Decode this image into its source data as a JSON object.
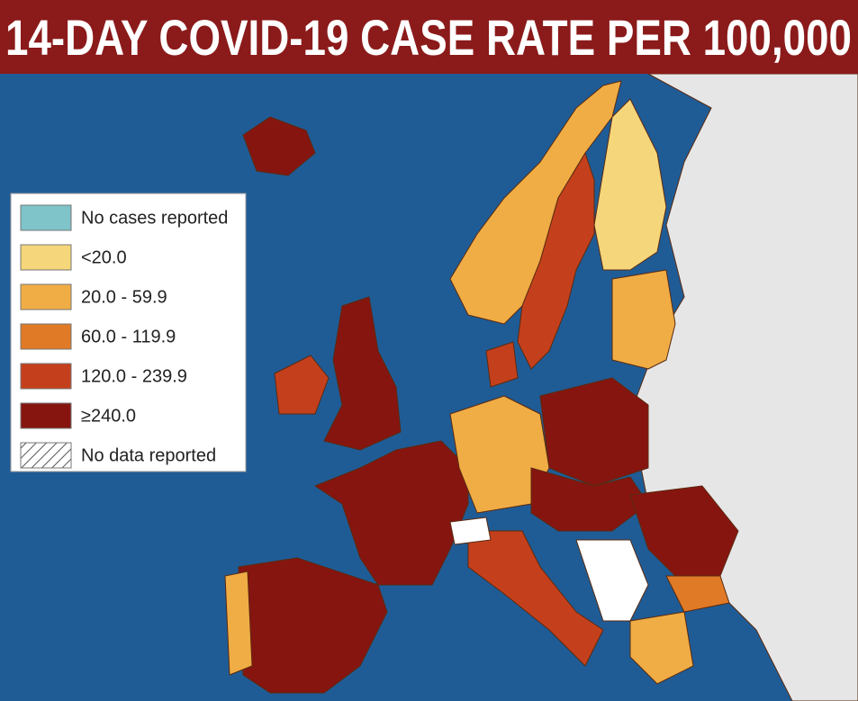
{
  "title": "14-DAY COVID-19 CASE RATE PER 100,000",
  "legend": {
    "items": [
      {
        "label": "No cases reported",
        "color": "#7ec4c9"
      },
      {
        "label": "<20.0",
        "color": "#f6d67a"
      },
      {
        "label": "20.0 - 59.9",
        "color": "#f0ad45"
      },
      {
        "label": "60.0 - 119.9",
        "color": "#e07a26"
      },
      {
        "label": "120.0 - 239.9",
        "color": "#c4401c"
      },
      {
        "label": "≥240.0",
        "color": "#861510"
      },
      {
        "label": "No data reported",
        "color": "#ffffff",
        "pattern": "hatched"
      }
    ]
  }
}
